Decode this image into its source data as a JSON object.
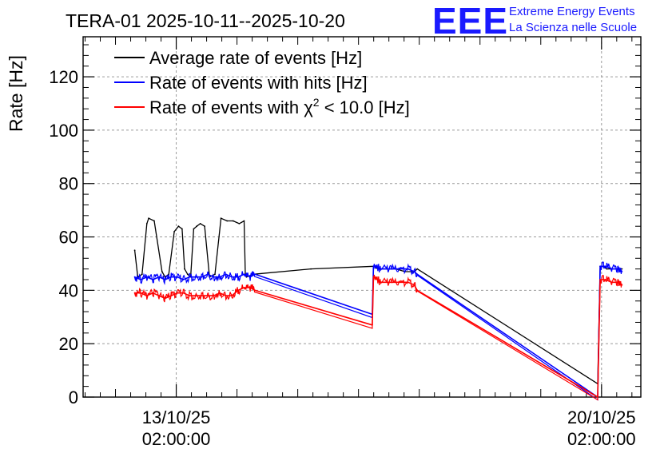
{
  "header": {
    "title": "TERA-01 2025-10-11--2025-10-20",
    "logo_text": "EEE",
    "logo_line1": "Extreme Energy Events",
    "logo_line2": "La Scienza nelle Scuole",
    "logo_color": "#1a1aff"
  },
  "legend": {
    "avg": "Average rate of events [Hz]",
    "hits": "Rate of events with hits [Hz]",
    "chi_prefix": "Rate of events with ",
    "chi_symbol": "χ",
    "chi_exp": "2",
    "chi_suffix": " < 10.0 [Hz]"
  },
  "chart_data": {
    "type": "line",
    "title": "TERA-01 2025-10-11--2025-10-20",
    "xlabel": "",
    "ylabel": "Rate [Hz]",
    "ylim": [
      0,
      135
    ],
    "xlim_days_from_2025_10_11": [
      0.55,
      9.73
    ],
    "grid": true,
    "yticks": [
      "0",
      "20",
      "40",
      "60",
      "80",
      "100",
      "120"
    ],
    "xticks": [
      {
        "date": "13/10/25",
        "time": "02:00:00",
        "x": 2.083
      },
      {
        "date": "20/10/25",
        "time": "02:00:00",
        "x": 9.083
      }
    ],
    "series": [
      {
        "name": "Average rate of events [Hz]",
        "color": "#000000",
        "x": [
          1.4,
          1.45,
          1.52,
          1.6,
          1.63,
          1.72,
          1.85,
          1.9,
          1.96,
          2.05,
          2.12,
          2.18,
          2.22,
          2.27,
          2.32,
          2.37,
          2.42,
          2.48,
          2.55,
          2.63,
          2.72,
          2.82,
          2.92,
          3.02,
          3.12,
          3.2,
          3.22,
          3.24,
          3.35,
          4.3,
          5.33,
          5.4,
          5.55,
          5.7,
          5.85,
          6.0,
          6.05,
          9.02,
          9.06,
          9.1,
          9.17,
          9.25,
          9.33,
          9.42
        ],
        "values": [
          55,
          45,
          46,
          65,
          67,
          66,
          47,
          45,
          46,
          62,
          64,
          63,
          48,
          46,
          45,
          63,
          64,
          65,
          64,
          45,
          46,
          67,
          66,
          66,
          65,
          66,
          46,
          45,
          46,
          48,
          49,
          48,
          48,
          48,
          47,
          47,
          48,
          5,
          49,
          49,
          48,
          48,
          48,
          48
        ]
      },
      {
        "name": "Rate of events with hits [Hz]",
        "color": "#0000ff",
        "x": [
          1.4,
          1.5,
          1.6,
          1.7,
          1.8,
          1.9,
          2.0,
          2.1,
          2.2,
          2.3,
          2.4,
          2.5,
          2.6,
          2.7,
          2.8,
          2.9,
          3.0,
          3.1,
          3.2,
          3.3,
          3.38,
          5.31,
          5.33,
          5.45,
          5.6,
          5.75,
          5.9,
          6.0,
          6.05,
          9.02,
          9.06,
          9.15,
          9.25,
          9.35,
          9.42
        ],
        "values": [
          45,
          44,
          45,
          44,
          45,
          44,
          45,
          45,
          44,
          45,
          45,
          45,
          46,
          45,
          45,
          46,
          45,
          45,
          46,
          45,
          46,
          31,
          49,
          48,
          48,
          48,
          48,
          47,
          46,
          0,
          49,
          49,
          48,
          48,
          47
        ]
      },
      {
        "name": "Rate of events with χ2 < 10.0 [Hz]",
        "color": "#ff0000",
        "x": [
          1.4,
          1.5,
          1.6,
          1.7,
          1.8,
          1.9,
          2.0,
          2.1,
          2.2,
          2.3,
          2.4,
          2.5,
          2.6,
          2.7,
          2.8,
          2.9,
          3.0,
          3.1,
          3.2,
          3.3,
          3.38,
          5.31,
          5.33,
          5.45,
          5.6,
          5.75,
          5.9,
          6.0,
          6.05,
          9.02,
          9.06,
          9.15,
          9.25,
          9.35,
          9.42
        ],
        "values": [
          39,
          39,
          38,
          39,
          38,
          37,
          38,
          39,
          39,
          38,
          38,
          38,
          38,
          38,
          39,
          38,
          38,
          40,
          41,
          41,
          40,
          27,
          45,
          43,
          43,
          43,
          43,
          42,
          40,
          0,
          44,
          44,
          43,
          43,
          42
        ]
      }
    ]
  }
}
